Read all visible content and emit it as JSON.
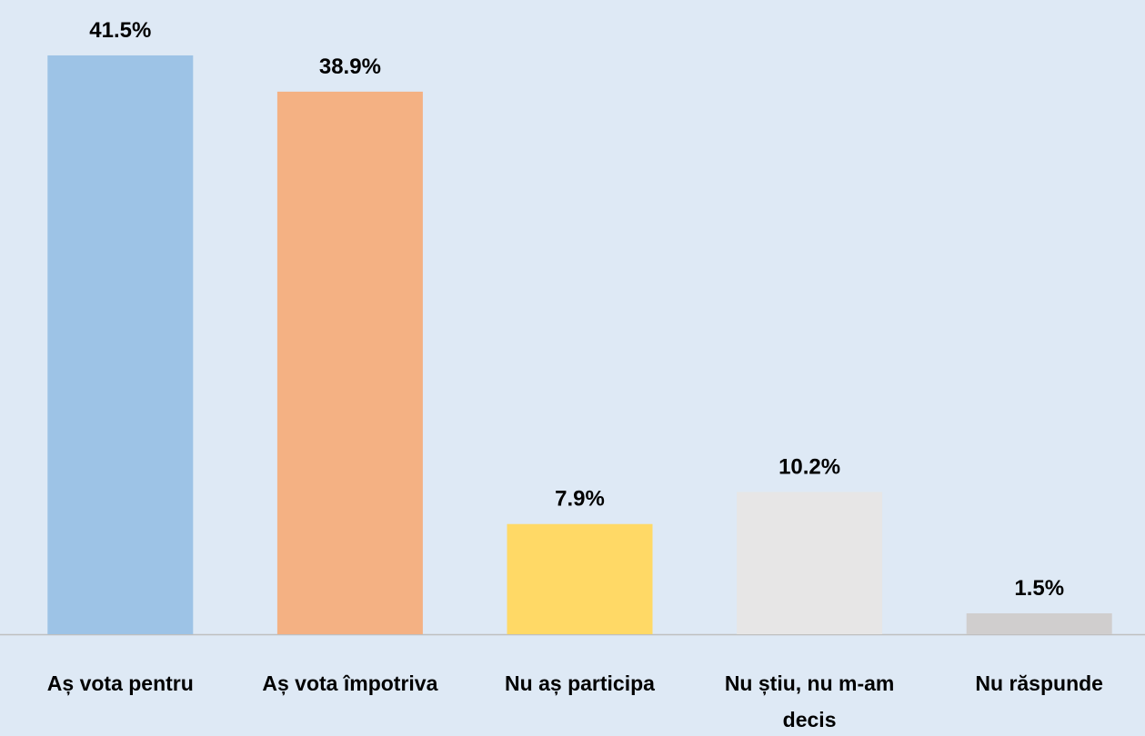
{
  "chart_data": {
    "type": "bar",
    "categories": [
      "Aș vota pentru",
      "Aș vota împotriva",
      "Nu aș participa",
      "Nu știu, nu m-am decis",
      "Nu răspunde"
    ],
    "values": [
      41.5,
      38.9,
      7.9,
      10.2,
      1.5
    ],
    "value_labels": [
      "41.5%",
      "38.9%",
      "7.9%",
      "10.2%",
      "1.5%"
    ],
    "colors": [
      "#9dc3e6",
      "#f4b183",
      "#ffd966",
      "#e7e6e6",
      "#d0cece"
    ]
  }
}
